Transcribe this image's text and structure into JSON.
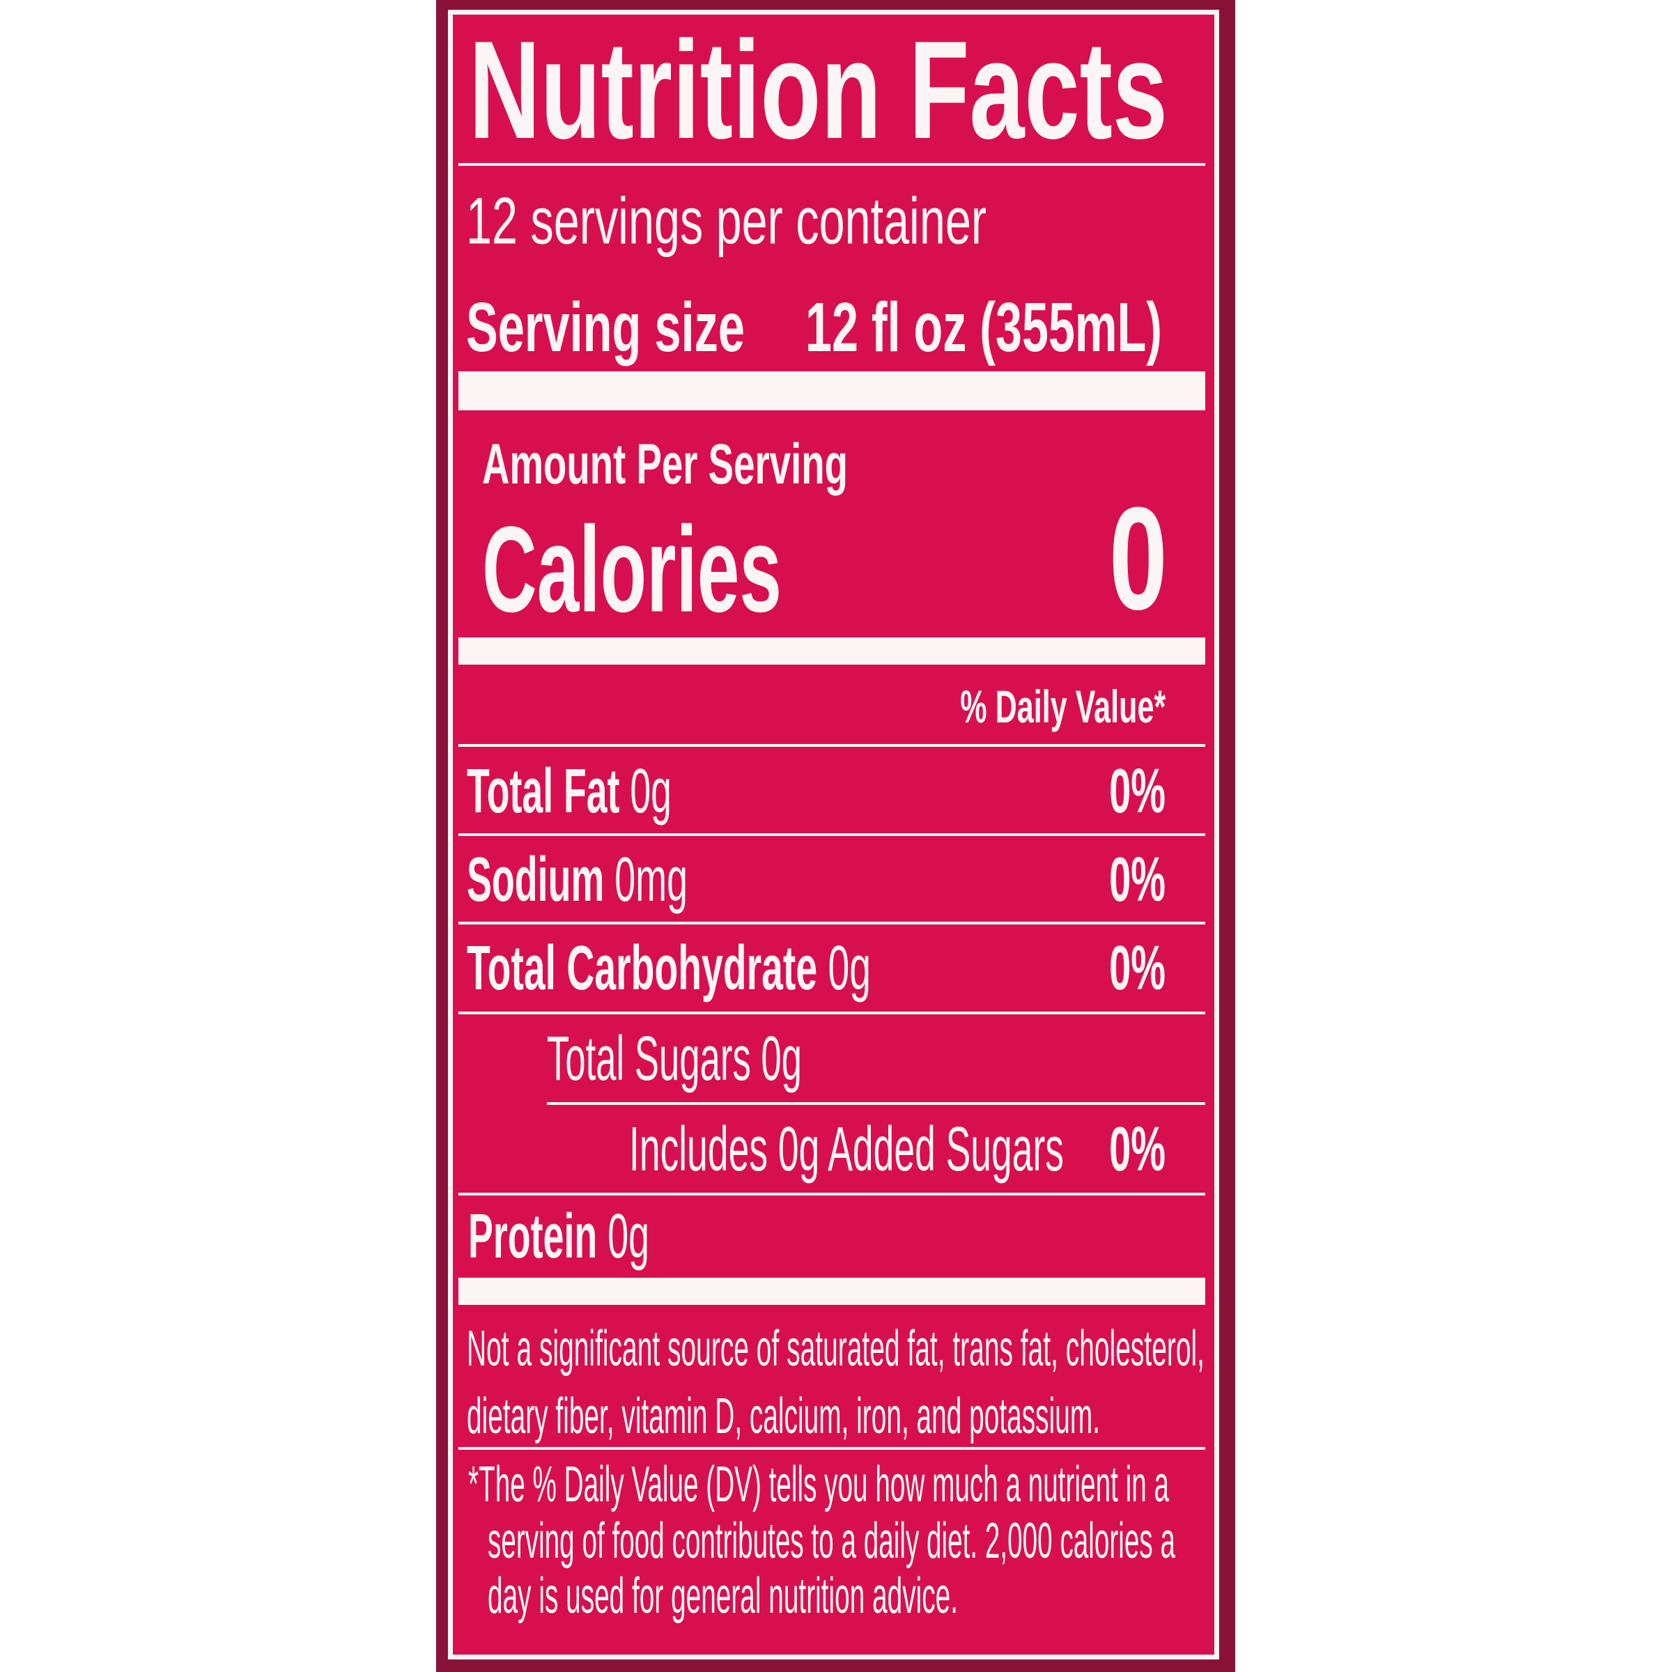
{
  "colors": {
    "label_background": "#d80f4f",
    "package_edge": "#8a1238",
    "text": "#fbf5f6"
  },
  "title": "Nutrition Facts",
  "servings_per_container": "12 servings per container",
  "serving_size": {
    "label": "Serving size",
    "value": "12 fl oz (355mL)"
  },
  "amount_per_serving": "Amount Per Serving",
  "calories": {
    "label": "Calories",
    "value": "0"
  },
  "daily_value_header": "% Daily Value*",
  "nutrients": [
    {
      "name": "Total Fat",
      "amount": "0g",
      "dv": "0%"
    },
    {
      "name": "Sodium",
      "amount": "0mg",
      "dv": "0%"
    },
    {
      "name": "Total Carbohydrate",
      "amount": "0g",
      "dv": "0%"
    },
    {
      "name": "Total Sugars 0g"
    },
    {
      "name": "Includes 0g Added Sugars",
      "dv": "0%"
    },
    {
      "name": "Protein",
      "amount": "0g"
    }
  ],
  "not_significant_lines": [
    "Not a significant source of saturated fat, trans fat, cholesterol,",
    "dietary fiber, vitamin D, calcium, iron, and potassium."
  ],
  "footnote_lines": [
    "*The % Daily Value (DV) tells you how much a nutrient in a",
    "serving of food contributes to a daily diet. 2,000 calories a",
    "day is used for general nutrition advice."
  ]
}
